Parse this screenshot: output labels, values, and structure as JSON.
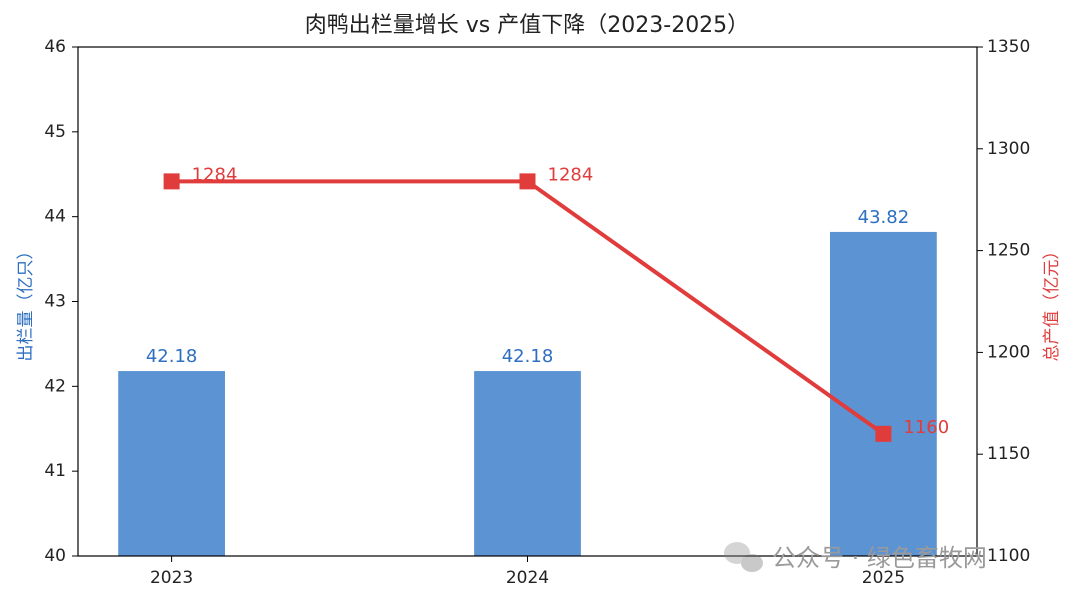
{
  "chart_data": {
    "type": "bar",
    "title": "肉鸭出栏量增长 vs 产值下降（2023-2025）",
    "ylabel": "出栏量（亿只）",
    "y2label": "总产值（亿元）",
    "categories": [
      "2023",
      "2024",
      "2025"
    ],
    "series": [
      {
        "name": "出栏量",
        "type": "bar",
        "axis": "y",
        "color": "#5b93d3",
        "label_color": "#2e6fc0",
        "values": [
          42.18,
          42.18,
          43.82
        ]
      },
      {
        "name": "总产值",
        "type": "line",
        "axis": "y2",
        "color": "#e03c3c",
        "label_color": "#e03c3c",
        "values": [
          1284,
          1284,
          1160
        ]
      }
    ],
    "ylim": [
      40,
      46
    ],
    "yticks": [
      40,
      41,
      42,
      43,
      44,
      45,
      46
    ],
    "y2lim": [
      1100,
      1350
    ],
    "y2ticks": [
      1100,
      1150,
      1200,
      1250,
      1300,
      1350
    ],
    "ylabel_color": "#2e6fc0",
    "y2label_color": "#e03c3c",
    "grid": false,
    "watermark": "公众号 · 绿色畜牧网"
  }
}
